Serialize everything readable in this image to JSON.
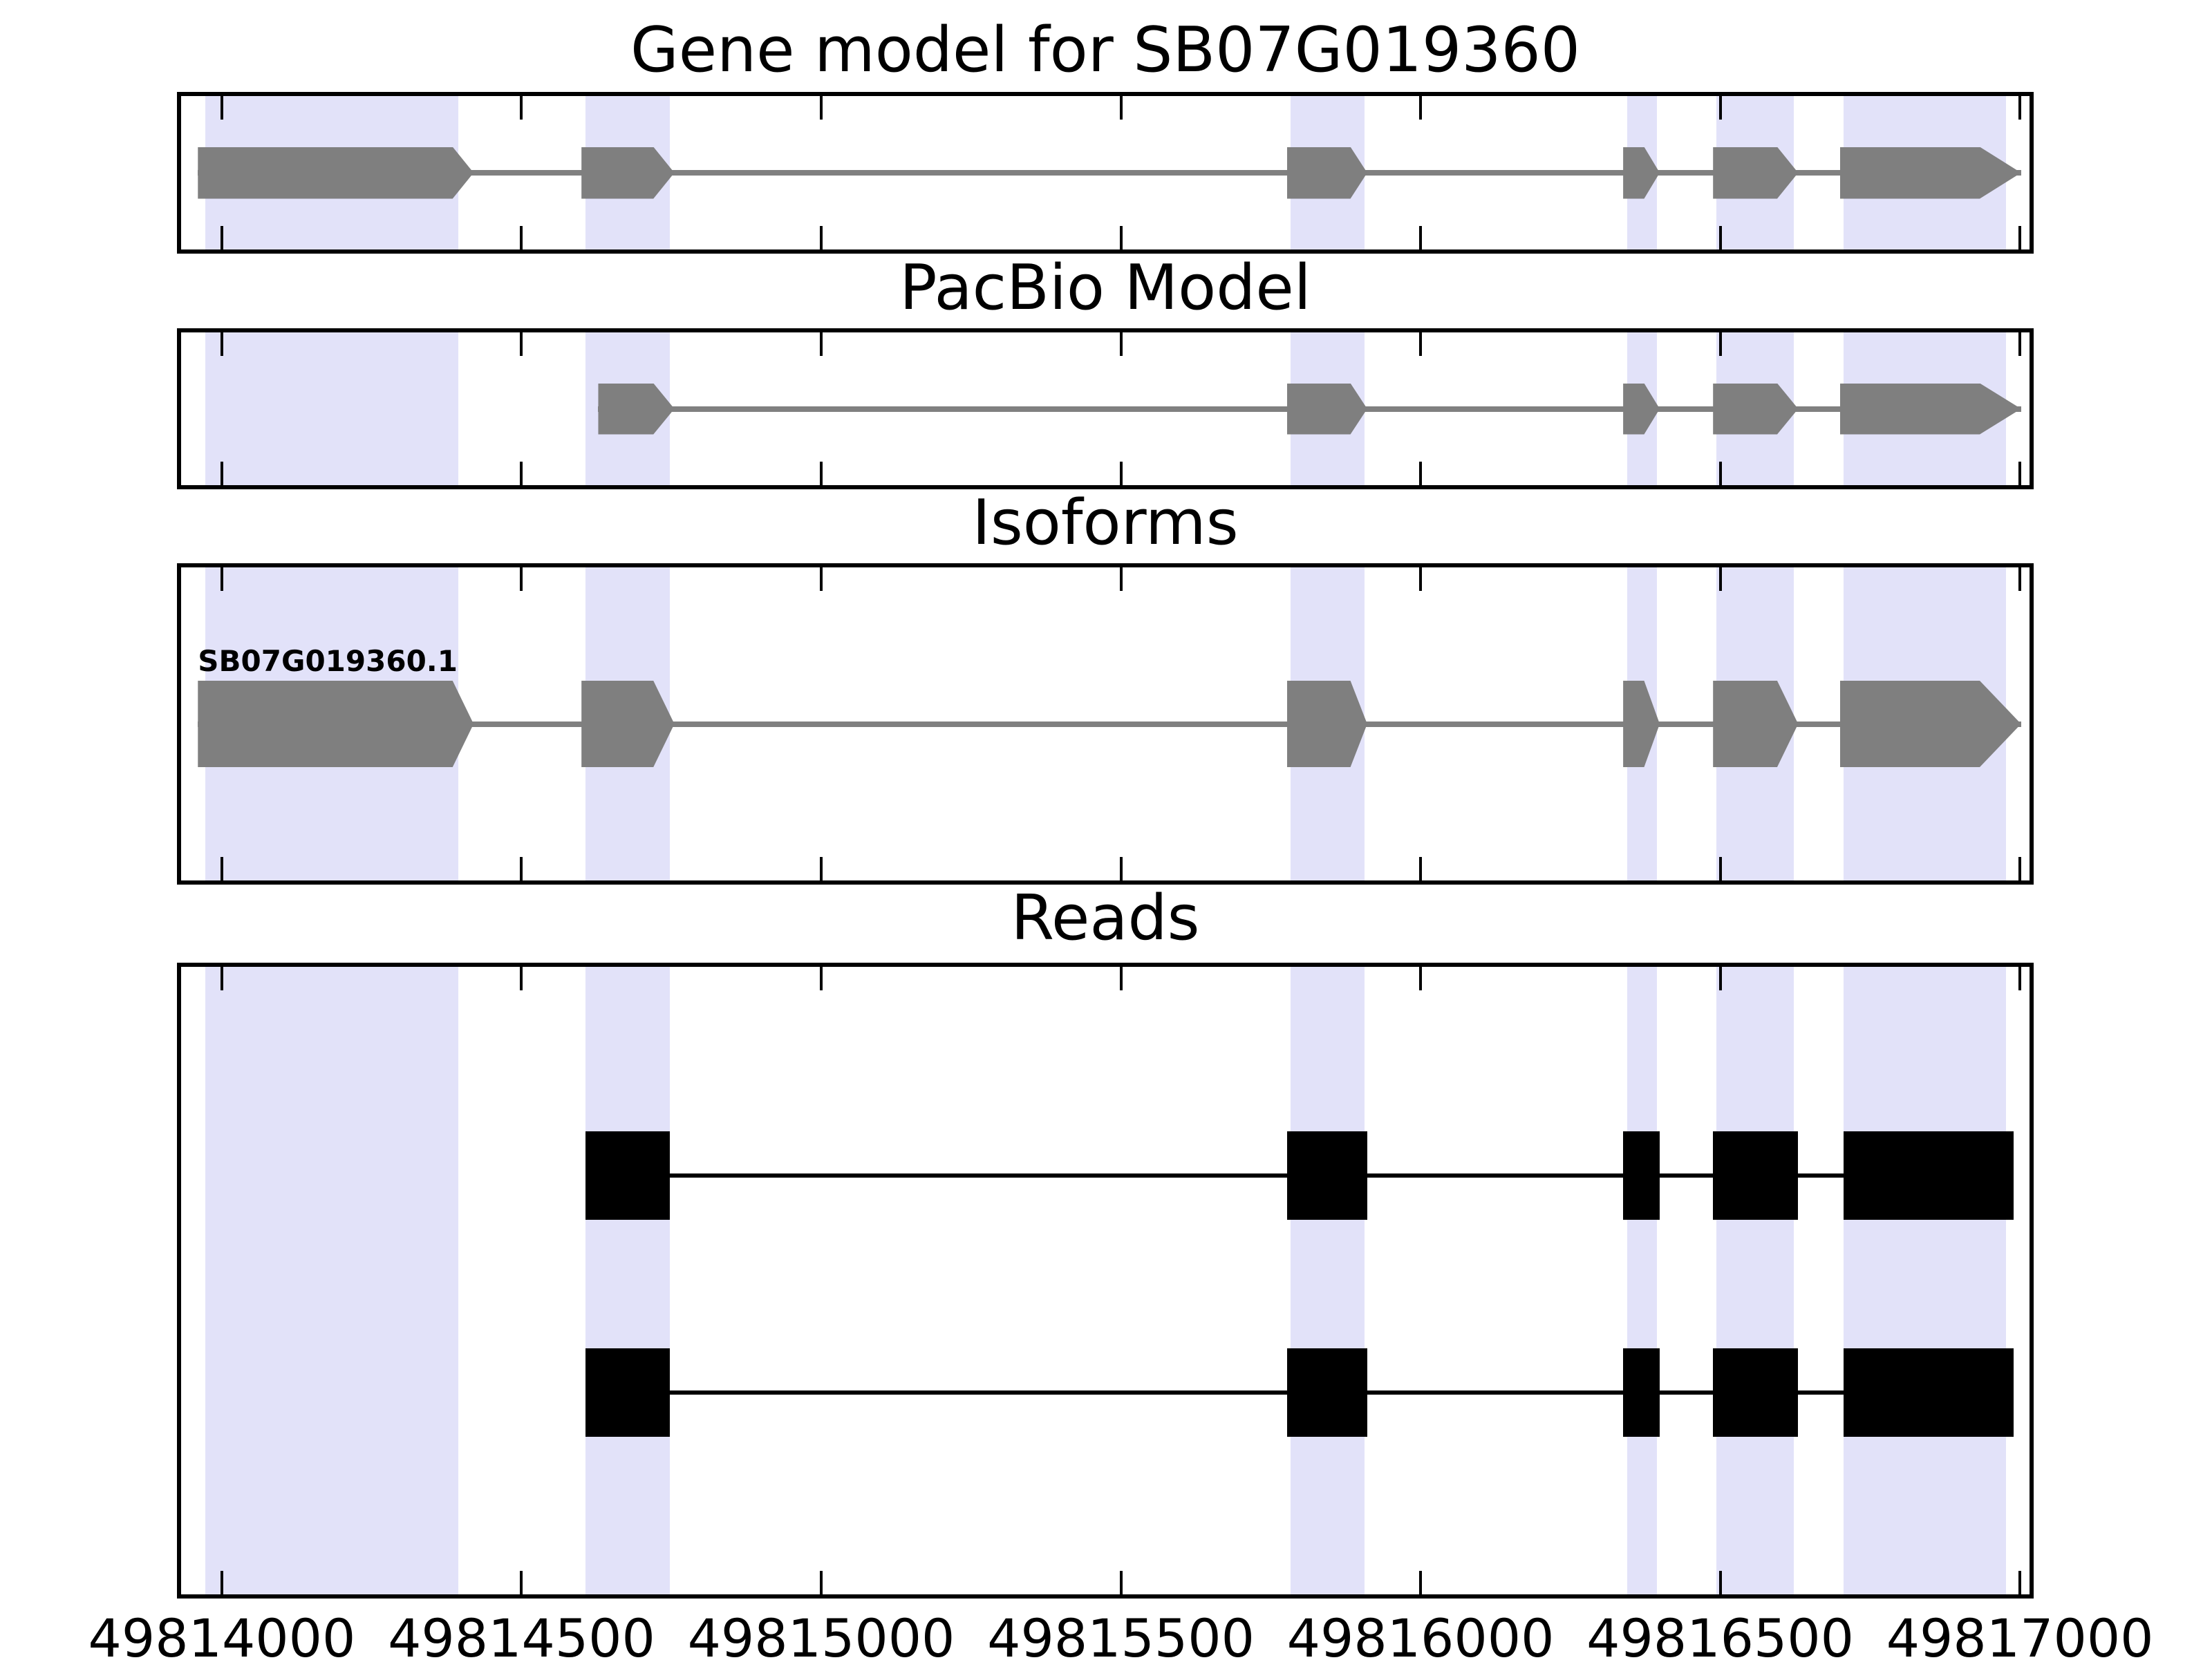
{
  "figure": {
    "background": "#ffffff",
    "band_color": "#e2e2f9",
    "feature_color": "#7f7f7f",
    "intron_color": "#808080",
    "read_color": "#000000",
    "border_color": "#000000"
  },
  "chart_data": {
    "type": "other",
    "subtype": "genomic gene-model track figure with four stacked panels sharing one x-axis",
    "x_axis": {
      "label": "",
      "min": 49813932,
      "max": 49817016,
      "tick_step": 500,
      "ticks": [
        49814000,
        49814500,
        49815000,
        49815500,
        49816000,
        49816500,
        49817000
      ],
      "tick_labels": [
        "49814000",
        "49814500",
        "49815000",
        "49815500",
        "49816000",
        "49816500",
        "49817000"
      ]
    },
    "highlight_bands": [
      {
        "start": 49813972,
        "end": 49814394
      },
      {
        "start": 49814607,
        "end": 49814747
      },
      {
        "start": 49815783,
        "end": 49815906
      },
      {
        "start": 49816345,
        "end": 49816394
      },
      {
        "start": 49816494,
        "end": 49816623
      },
      {
        "start": 49816706,
        "end": 49816977
      }
    ],
    "panels": [
      {
        "id": "gene-model",
        "title": "Gene model for SB07G019360",
        "track_type": "arrow-features",
        "strand": "+",
        "features": [
          {
            "start": 49813960,
            "body_end": 49814385,
            "end": 49814420
          },
          {
            "start": 49814600,
            "body_end": 49814720,
            "end": 49814755
          },
          {
            "start": 49815777,
            "body_end": 49815883,
            "end": 49815911
          },
          {
            "start": 49816338,
            "body_end": 49816373,
            "end": 49816399
          },
          {
            "start": 49816488,
            "body_end": 49816595,
            "end": 49816630
          },
          {
            "start": 49816700,
            "body_end": 49816933,
            "end": 49817002
          }
        ]
      },
      {
        "id": "pacbio",
        "title": "PacBio Model",
        "track_type": "arrow-features",
        "strand": "+",
        "features": [
          {
            "start": 49814628,
            "body_end": 49814720,
            "end": 49814755
          },
          {
            "start": 49815777,
            "body_end": 49815883,
            "end": 49815911
          },
          {
            "start": 49816338,
            "body_end": 49816373,
            "end": 49816399
          },
          {
            "start": 49816488,
            "body_end": 49816595,
            "end": 49816630
          },
          {
            "start": 49816700,
            "body_end": 49816933,
            "end": 49817002
          }
        ]
      },
      {
        "id": "isoforms",
        "title": "Isoforms",
        "track_type": "arrow-features",
        "strand": "+",
        "isoform_label": "SB07G019360.1",
        "features": [
          {
            "start": 49813960,
            "body_end": 49814385,
            "end": 49814420
          },
          {
            "start": 49814600,
            "body_end": 49814720,
            "end": 49814755
          },
          {
            "start": 49815777,
            "body_end": 49815883,
            "end": 49815911
          },
          {
            "start": 49816338,
            "body_end": 49816373,
            "end": 49816399
          },
          {
            "start": 49816488,
            "body_end": 49816595,
            "end": 49816630
          },
          {
            "start": 49816700,
            "body_end": 49816933,
            "end": 49817002
          }
        ]
      },
      {
        "id": "reads",
        "title": "Reads",
        "track_type": "reads",
        "reads": [
          {
            "blocks": [
              {
                "start": 49814607,
                "end": 49814747
              },
              {
                "start": 49815777,
                "end": 49815911
              },
              {
                "start": 49816338,
                "end": 49816399
              },
              {
                "start": 49816488,
                "end": 49816630
              },
              {
                "start": 49816706,
                "end": 49816990
              }
            ]
          },
          {
            "blocks": [
              {
                "start": 49814607,
                "end": 49814747
              },
              {
                "start": 49815777,
                "end": 49815911
              },
              {
                "start": 49816338,
                "end": 49816399
              },
              {
                "start": 49816488,
                "end": 49816630
              },
              {
                "start": 49816706,
                "end": 49816990
              }
            ]
          }
        ]
      }
    ]
  }
}
